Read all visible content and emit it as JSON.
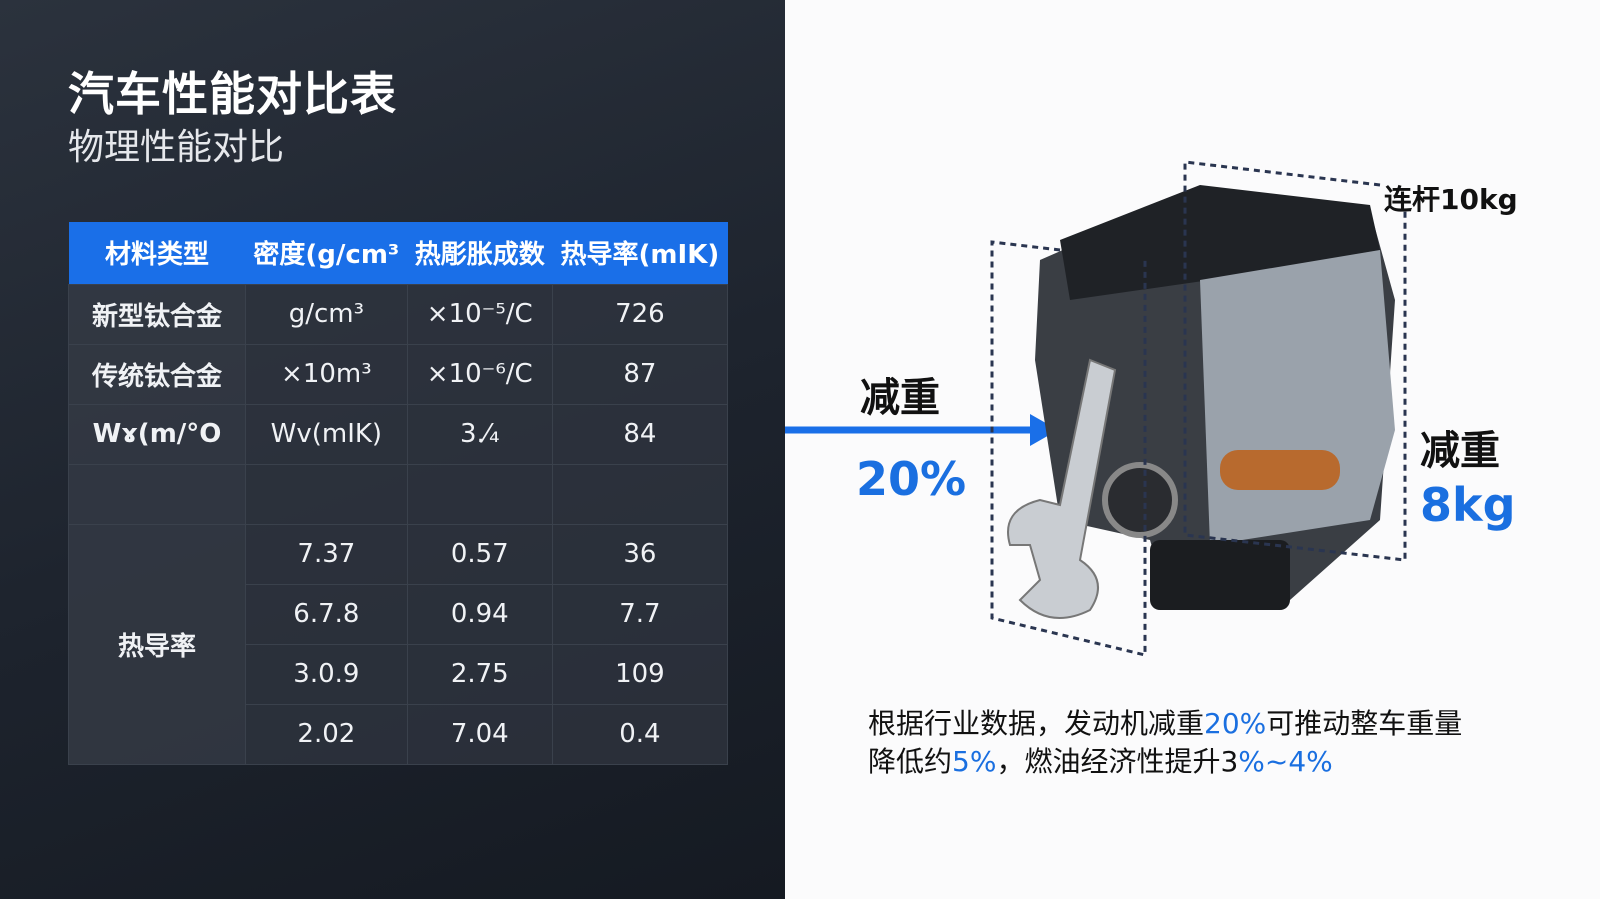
{
  "title": "汽车性能对比表",
  "subtitle": "物理性能对比",
  "table": {
    "headers": [
      "材料类型",
      "密度(g/cm³",
      "热彫胀成数",
      "热导率(mIK)"
    ],
    "rows": [
      [
        "新型钛合金",
        "g/cm³",
        "×10⁻⁵/C",
        "726"
      ],
      [
        "传统钛合金",
        "×10m³",
        "×10⁻⁶/C",
        "87"
      ],
      [
        "Wɤ(m/°O",
        "Wv(mIK)",
        "3.⁄₄",
        "84"
      ],
      [
        "",
        "",
        "",
        ""
      ]
    ],
    "group_label": "热导率",
    "group_rows": [
      [
        "7.37",
        "0.57",
        "36"
      ],
      [
        "6.7.8",
        "0.94",
        "7.7"
      ],
      [
        "3.0.9",
        "2.75",
        "109"
      ],
      [
        "2.02",
        "7.04",
        "0.4"
      ]
    ]
  },
  "diagram": {
    "left_label": "减重",
    "left_value": "20%",
    "top_label": "连杆10kg",
    "right_label": "减重",
    "right_value": "8kg",
    "accent": "#1a6fe0"
  },
  "note": {
    "p1": "根据行业数据，发动机减重",
    "v1": "20%",
    "p2": "可推动整车重量",
    "p3": "降低约",
    "v2": "5%",
    "p4": "，燃油经济性提升3",
    "v3": "%~4%"
  }
}
